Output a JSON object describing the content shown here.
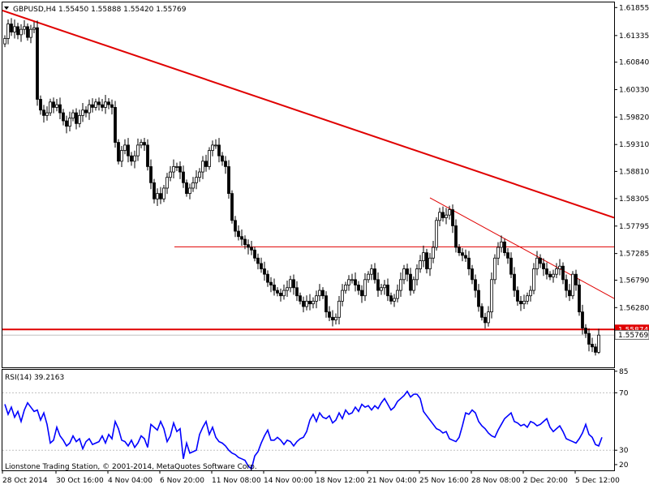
{
  "header": {
    "symbol_info": "GBPUSD,H4  1.55450 1.55888 1.55420 1.55769"
  },
  "rsi_panel": {
    "label": "RSI(14) 39.2163"
  },
  "copyright": "Lionstone Trading Station, © 2001-2014, MetaQuotes Software Corp.",
  "colors": {
    "bull_candle": "#ffffff",
    "bear_candle": "#000000",
    "trendline": "#e00000",
    "rsi_line": "#0000ff",
    "price_tag_bg": "#e00000",
    "grid": "#c0c0c0"
  },
  "chart_data": [
    {
      "type": "candlestick",
      "symbol": "GBPUSD",
      "timeframe": "H4",
      "ohlc_last": {
        "open": 1.5545,
        "high": 1.55888,
        "low": 1.5542,
        "close": 1.55769
      },
      "ylim": [
        1.5517,
        1.6195
      ],
      "y_ticks": [
        "1.61855",
        "1.61335",
        "1.60840",
        "1.60330",
        "1.59820",
        "1.59310",
        "1.58810",
        "1.58305",
        "1.57795",
        "1.57285",
        "1.56790",
        "1.56280",
        "1.55769"
      ],
      "x_ticks": [
        "28 Oct 2014",
        "30 Oct 16:00",
        "4 Nov 04:00",
        "6 Nov 20:00",
        "11 Nov 08:00",
        "14 Nov 00:00",
        "18 Nov 12:00",
        "21 Nov 04:00",
        "25 Nov 16:00",
        "28 Nov 08:00",
        "2 Dec 20:00",
        "5 Dec 12:00"
      ],
      "current_price_label": "1.55769",
      "horizontal_levels": [
        {
          "price": 1.55874,
          "label": "1.55874"
        },
        {
          "price": 1.5741
        }
      ],
      "trendlines": [
        {
          "from_index": 0,
          "from_price": 1.618,
          "to_index": 188,
          "to_price": 1.5795
        },
        {
          "from_index": 131,
          "from_price": 1.5832,
          "to_index": 188,
          "to_price": 1.5645
        }
      ],
      "close_path": [
        1.6128,
        1.6155,
        1.614,
        1.615,
        1.6135,
        1.6145,
        1.615,
        1.613,
        1.6145,
        1.6148,
        1.6015,
        1.5995,
        1.5985,
        1.599,
        1.601,
        1.6,
        1.6005,
        1.599,
        1.5975,
        1.5965,
        1.598,
        1.599,
        1.597,
        1.5985,
        1.5995,
        1.599,
        1.6005,
        1.6,
        1.601,
        1.6005,
        1.6,
        1.601,
        1.6005,
        1.6,
        1.5935,
        1.59,
        1.592,
        1.593,
        1.591,
        1.59,
        1.591,
        1.593,
        1.5935,
        1.593,
        1.589,
        1.586,
        1.583,
        1.584,
        1.583,
        1.585,
        1.587,
        1.588,
        1.589,
        1.589,
        1.588,
        1.586,
        1.584,
        1.585,
        1.586,
        1.587,
        1.588,
        1.59,
        1.589,
        1.592,
        1.593,
        1.593,
        1.591,
        1.59,
        1.589,
        1.584,
        1.579,
        1.577,
        1.576,
        1.5755,
        1.5745,
        1.574,
        1.5735,
        1.572,
        1.571,
        1.57,
        1.569,
        1.5675,
        1.567,
        1.566,
        1.5655,
        1.565,
        1.566,
        1.5665,
        1.568,
        1.5665,
        1.565,
        1.564,
        1.563,
        1.564,
        1.5635,
        1.564,
        1.565,
        1.566,
        1.565,
        1.562,
        1.561,
        1.5605,
        1.561,
        1.564,
        1.566,
        1.567,
        1.568,
        1.568,
        1.567,
        1.566,
        1.565,
        1.568,
        1.569,
        1.57,
        1.568,
        1.566,
        1.5665,
        1.567,
        1.565,
        1.564,
        1.5645,
        1.566,
        1.568,
        1.57,
        1.569,
        1.566,
        1.568,
        1.57,
        1.5715,
        1.573,
        1.57,
        1.572,
        1.574,
        1.579,
        1.5805,
        1.5795,
        1.58,
        1.581,
        1.578,
        1.574,
        1.573,
        1.5725,
        1.572,
        1.57,
        1.568,
        1.566,
        1.563,
        1.561,
        1.56,
        1.562,
        1.568,
        1.572,
        1.574,
        1.575,
        1.573,
        1.572,
        1.569,
        1.566,
        1.564,
        1.5635,
        1.564,
        1.565,
        1.566,
        1.57,
        1.572,
        1.571,
        1.57,
        1.569,
        1.5685,
        1.569,
        1.57,
        1.5705,
        1.568,
        1.566,
        1.565,
        1.569,
        1.567,
        1.562,
        1.559,
        1.558,
        1.556,
        1.5555,
        1.5545,
        1.5577
      ]
    },
    {
      "type": "line",
      "name": "RSI(14) 39.2163",
      "ylim": [
        16,
        86
      ],
      "y_ticks": [
        "85",
        "70",
        "30",
        "20"
      ],
      "levels": [
        70,
        30
      ],
      "values": [
        62,
        55,
        60,
        53,
        57,
        50,
        58,
        63,
        60,
        57,
        58,
        51,
        56,
        48,
        35,
        37,
        46,
        40,
        37,
        33,
        35,
        40,
        36,
        38,
        31,
        36,
        38,
        34,
        35,
        36,
        40,
        35,
        41,
        38,
        50,
        45,
        37,
        36,
        33,
        37,
        32,
        35,
        40,
        38,
        32,
        48,
        46,
        44,
        50,
        45,
        36,
        40,
        49,
        43,
        45,
        24,
        35,
        28,
        29,
        30,
        41,
        46,
        50,
        41,
        46,
        39,
        36,
        35,
        33,
        30,
        28,
        27,
        25,
        24,
        23,
        19,
        17,
        26,
        29,
        35,
        40,
        44,
        37,
        37,
        39,
        37,
        34,
        37,
        36,
        33,
        36,
        38,
        39,
        43,
        51,
        55,
        50,
        56,
        53,
        52,
        54,
        49,
        51,
        56,
        52,
        58,
        55,
        56,
        60,
        57,
        62,
        60,
        61,
        58,
        61,
        59,
        63,
        66,
        62,
        58,
        60,
        64,
        66,
        68,
        71,
        67,
        69,
        69,
        66,
        57,
        54,
        51,
        48,
        45,
        44,
        42,
        43,
        38,
        37,
        36,
        39,
        47,
        56,
        55,
        58,
        56,
        50,
        47,
        45,
        42,
        40,
        39,
        44,
        48,
        52,
        54,
        56,
        50,
        49,
        47,
        48,
        46,
        50,
        49,
        47,
        48,
        50,
        52,
        46,
        43,
        45,
        47,
        43,
        38,
        37,
        36,
        35,
        38,
        42,
        48,
        41,
        39,
        34,
        33,
        39
      ]
    }
  ]
}
